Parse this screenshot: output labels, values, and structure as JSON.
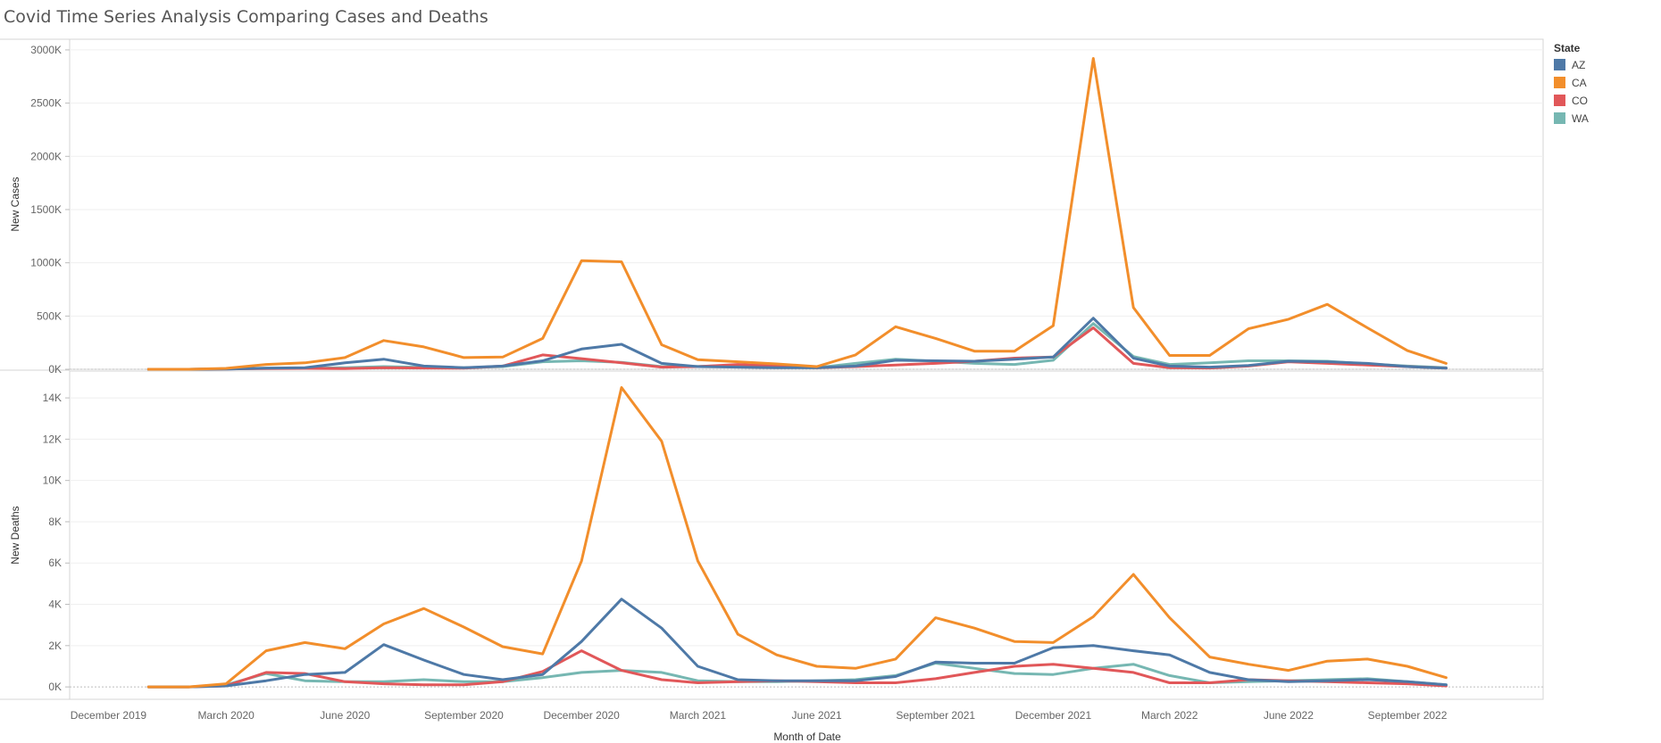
{
  "title": "Covid Time Series Analysis Comparing Cases and Deaths",
  "chart_data": {
    "type": "line",
    "title": "Covid Time Series Analysis Comparing Cases and Deaths",
    "xlabel": "Month of Date",
    "x": [
      "2020-01",
      "2020-02",
      "2020-03",
      "2020-04",
      "2020-05",
      "2020-06",
      "2020-07",
      "2020-08",
      "2020-09",
      "2020-10",
      "2020-11",
      "2020-12",
      "2021-01",
      "2021-02",
      "2021-03",
      "2021-04",
      "2021-05",
      "2021-06",
      "2021-07",
      "2021-08",
      "2021-09",
      "2021-10",
      "2021-11",
      "2021-12",
      "2022-01",
      "2022-02",
      "2022-03",
      "2022-04",
      "2022-05",
      "2022-06",
      "2022-07",
      "2022-08",
      "2022-09",
      "2022-10"
    ],
    "x_ticks": [
      {
        "label": "December 2019",
        "month": "2019-12"
      },
      {
        "label": "March 2020",
        "month": "2020-03"
      },
      {
        "label": "June 2020",
        "month": "2020-06"
      },
      {
        "label": "September 2020",
        "month": "2020-09"
      },
      {
        "label": "December 2020",
        "month": "2020-12"
      },
      {
        "label": "March 2021",
        "month": "2021-03"
      },
      {
        "label": "June 2021",
        "month": "2021-06"
      },
      {
        "label": "September 2021",
        "month": "2021-09"
      },
      {
        "label": "December 2021",
        "month": "2021-12"
      },
      {
        "label": "March 2022",
        "month": "2022-03"
      },
      {
        "label": "June 2022",
        "month": "2022-06"
      },
      {
        "label": "September 2022",
        "month": "2022-09"
      }
    ],
    "x_range": [
      "2019-11-01",
      "2022-12-15"
    ],
    "legend": {
      "title": "State",
      "position": "top-right",
      "items": [
        {
          "name": "AZ",
          "color": "#4e79a7"
        },
        {
          "name": "CA",
          "color": "#f28e2b"
        },
        {
          "name": "CO",
          "color": "#e15759"
        },
        {
          "name": "WA",
          "color": "#76b7b2"
        }
      ]
    },
    "panels": [
      {
        "ylabel": "New Cases",
        "ylim": [
          0,
          3100000
        ],
        "yticks": [
          0,
          500000,
          1000000,
          1500000,
          2000000,
          2500000,
          3000000
        ],
        "ytick_labels": [
          "0K",
          "500K",
          "1000K",
          "1500K",
          "2000K",
          "2500K",
          "3000K"
        ],
        "series": [
          {
            "name": "WA",
            "values": [
              0,
              0,
              5000,
              10000,
              8000,
              15000,
              25000,
              18000,
              15000,
              25000,
              70000,
              80000,
              65000,
              25000,
              28000,
              35000,
              20000,
              15000,
              55000,
              95000,
              75000,
              55000,
              45000,
              85000,
              430000,
              120000,
              45000,
              60000,
              80000,
              80000,
              75000,
              50000,
              30000,
              15000
            ]
          },
          {
            "name": "CO",
            "values": [
              0,
              0,
              3000,
              7000,
              8000,
              6000,
              15000,
              12000,
              10000,
              30000,
              135000,
              100000,
              60000,
              20000,
              25000,
              45000,
              30000,
              15000,
              25000,
              40000,
              55000,
              75000,
              105000,
              115000,
              390000,
              55000,
              15000,
              12000,
              30000,
              70000,
              55000,
              40000,
              25000,
              10000
            ]
          },
          {
            "name": "AZ",
            "values": [
              0,
              0,
              2000,
              10000,
              15000,
              60000,
              95000,
              30000,
              15000,
              30000,
              80000,
              190000,
              235000,
              55000,
              25000,
              20000,
              15000,
              15000,
              30000,
              85000,
              80000,
              75000,
              95000,
              115000,
              480000,
              105000,
              30000,
              20000,
              35000,
              75000,
              70000,
              55000,
              25000,
              10000
            ]
          },
          {
            "name": "CA",
            "values": [
              0,
              0,
              8000,
              45000,
              60000,
              110000,
              270000,
              210000,
              110000,
              115000,
              290000,
              1020000,
              1010000,
              230000,
              90000,
              70000,
              50000,
              25000,
              135000,
              400000,
              290000,
              170000,
              170000,
              410000,
              2920000,
              580000,
              130000,
              130000,
              380000,
              470000,
              610000,
              390000,
              175000,
              55000
            ]
          }
        ]
      },
      {
        "ylabel": "New Deaths",
        "ylim": [
          -600,
          15300
        ],
        "yticks": [
          0,
          2000,
          4000,
          6000,
          8000,
          10000,
          12000,
          14000
        ],
        "ytick_labels": [
          "0K",
          "2K",
          "4K",
          "6K",
          "8K",
          "10K",
          "12K",
          "14K"
        ],
        "series": [
          {
            "name": "WA",
            "values": [
              0,
              0,
              100,
              650,
              300,
              250,
              250,
              350,
              250,
              250,
              450,
              700,
              800,
              700,
              300,
              250,
              250,
              300,
              350,
              550,
              1150,
              900,
              650,
              600,
              900,
              1100,
              550,
              200,
              250,
              300,
              350,
              400,
              250,
              100
            ]
          },
          {
            "name": "CO",
            "values": [
              0,
              0,
              50,
              700,
              650,
              250,
              150,
              100,
              100,
              250,
              750,
              1750,
              800,
              350,
              200,
              250,
              300,
              250,
              200,
              200,
              400,
              700,
              1000,
              1100,
              900,
              700,
              200,
              200,
              350,
              300,
              250,
              200,
              150,
              50
            ]
          },
          {
            "name": "AZ",
            "values": [
              0,
              0,
              50,
              300,
              600,
              700,
              2050,
              1300,
              600,
              350,
              600,
              2200,
              4250,
              2850,
              1000,
              350,
              300,
              300,
              300,
              500,
              1200,
              1150,
              1150,
              1900,
              2000,
              1750,
              1550,
              700,
              350,
              250,
              300,
              350,
              250,
              100
            ]
          },
          {
            "name": "CA",
            "values": [
              0,
              0,
              150,
              1750,
              2150,
              1850,
              3050,
              3800,
              2900,
              1950,
              1600,
              6100,
              14500,
              11900,
              6100,
              2550,
              1550,
              1000,
              900,
              1350,
              3350,
              2850,
              2200,
              2150,
              3400,
              5450,
              3350,
              1450,
              1100,
              800,
              1250,
              1350,
              1000,
              450
            ]
          }
        ]
      }
    ]
  }
}
